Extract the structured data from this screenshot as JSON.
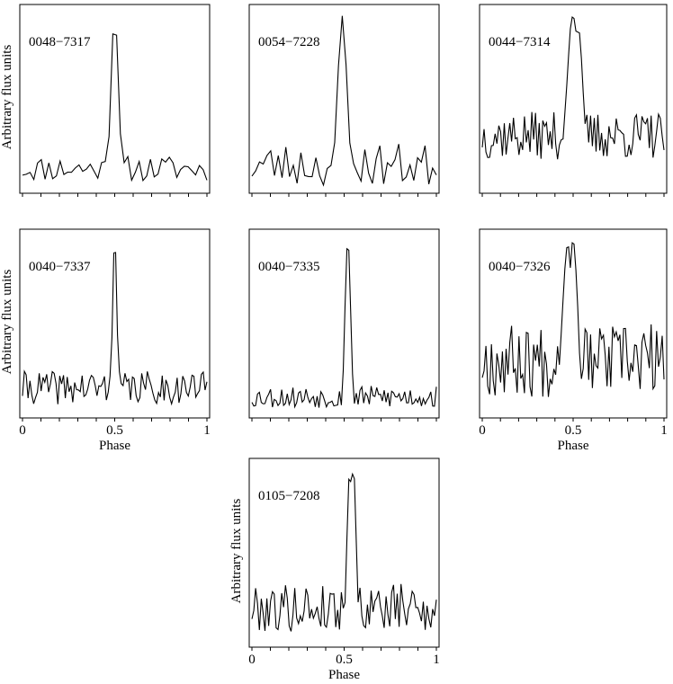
{
  "chart_data": [
    {
      "type": "line",
      "label": "0048−7317",
      "ylabel": "Arbitrary flux units",
      "xlabel": "",
      "xlim": [
        0,
        1
      ],
      "x_ticks": [],
      "x_tick_labels": [],
      "ylim": [
        0,
        1
      ],
      "n_points": 50,
      "seed": 11,
      "noise": {
        "base": 0.12,
        "amp": 0.07
      },
      "pulses": [
        {
          "center": 0.5,
          "height": 0.97,
          "width": 0.02
        }
      ],
      "grid": false,
      "legend": "none"
    },
    {
      "type": "line",
      "label": "0054−7228",
      "ylabel": "",
      "xlabel": "",
      "xlim": [
        0,
        1
      ],
      "x_ticks": [],
      "x_tick_labels": [],
      "ylim": [
        0,
        1
      ],
      "n_points": 50,
      "seed": 23,
      "noise": {
        "base": 0.14,
        "amp": 0.12
      },
      "pulses": [
        {
          "center": 0.49,
          "height": 0.96,
          "width": 0.025
        }
      ],
      "grid": false,
      "legend": "none"
    },
    {
      "type": "line",
      "label": "0044−7314",
      "ylabel": "",
      "xlabel": "",
      "xlim": [
        0,
        1
      ],
      "x_ticks": [],
      "x_tick_labels": [],
      "ylim": [
        0,
        1
      ],
      "n_points": 100,
      "seed": 37,
      "noise": {
        "base": 0.3,
        "amp": 0.13
      },
      "pulses": [
        {
          "center": 0.5,
          "height": 0.96,
          "width": 0.035
        },
        {
          "center": 0.53,
          "height": 0.88,
          "width": 0.025
        }
      ],
      "grid": false,
      "legend": "none"
    },
    {
      "type": "line",
      "label": "0040−7337",
      "ylabel": "Arbitrary flux units",
      "xlabel": "Phase",
      "xlim": [
        0,
        1
      ],
      "x_ticks": [
        0,
        0.5,
        1
      ],
      "x_tick_labels": [
        "0",
        "0.5",
        "1"
      ],
      "ylim": [
        0,
        1
      ],
      "n_points": 100,
      "seed": 41,
      "noise": {
        "base": 0.15,
        "amp": 0.09
      },
      "pulses": [
        {
          "center": 0.5,
          "height": 0.97,
          "width": 0.012
        }
      ],
      "grid": false,
      "legend": "none"
    },
    {
      "type": "line",
      "label": "0040−7335",
      "ylabel": "",
      "xlabel": "",
      "xlim": [
        0,
        1
      ],
      "x_ticks": [],
      "x_tick_labels": [],
      "ylim": [
        0,
        1
      ],
      "n_points": 100,
      "seed": 53,
      "noise": {
        "base": 0.1,
        "amp": 0.06
      },
      "pulses": [
        {
          "center": 0.52,
          "height": 0.96,
          "width": 0.015
        }
      ],
      "grid": false,
      "legend": "none"
    },
    {
      "type": "line",
      "label": "0040−7326",
      "ylabel": "",
      "xlabel": "Phase",
      "xlim": [
        0,
        1
      ],
      "x_ticks": [
        0,
        0.5,
        1
      ],
      "x_tick_labels": [
        "0",
        "0.5",
        "1"
      ],
      "ylim": [
        0,
        1
      ],
      "n_points": 100,
      "seed": 67,
      "noise": {
        "base": 0.3,
        "amp": 0.2
      },
      "pulses": [
        {
          "center": 0.47,
          "height": 0.92,
          "width": 0.03
        },
        {
          "center": 0.5,
          "height": 0.96,
          "width": 0.025
        }
      ],
      "grid": false,
      "legend": "none"
    },
    {
      "type": "line",
      "label": "0105−7208",
      "ylabel": "Arbitrary flux units",
      "xlabel": "Phase",
      "xlim": [
        0,
        1
      ],
      "x_ticks": [
        0,
        0.5,
        1
      ],
      "x_tick_labels": [
        "0",
        "0.5",
        "1"
      ],
      "ylim": [
        0,
        1
      ],
      "n_points": 100,
      "seed": 79,
      "noise": {
        "base": 0.2,
        "amp": 0.13
      },
      "pulses": [
        {
          "center": 0.53,
          "height": 0.96,
          "width": 0.015
        },
        {
          "center": 0.55,
          "height": 0.98,
          "width": 0.015
        }
      ],
      "grid": false,
      "legend": "none"
    }
  ]
}
